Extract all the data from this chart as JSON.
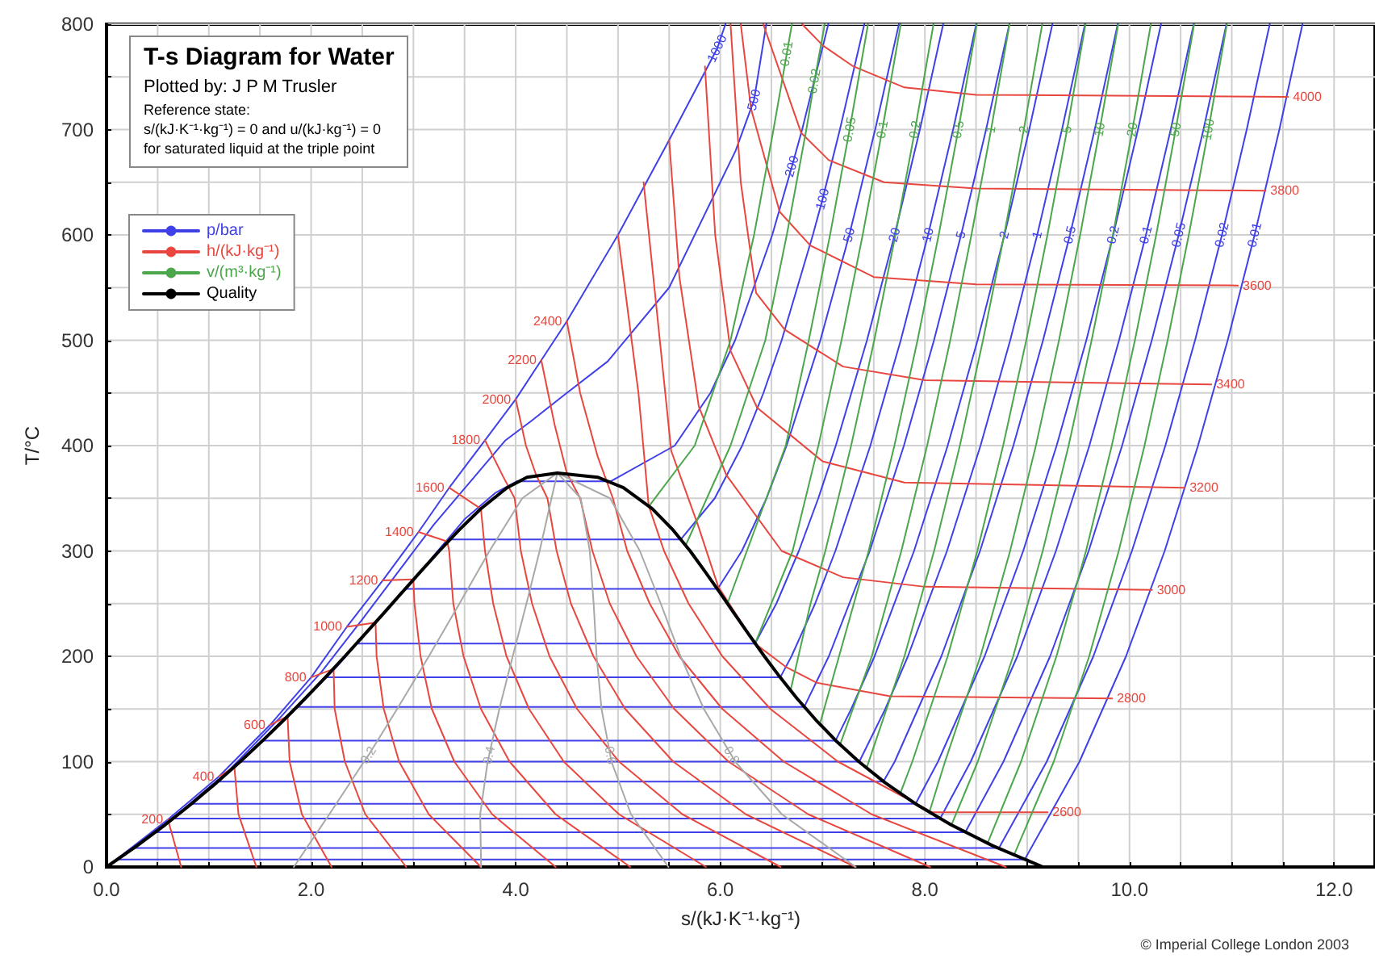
{
  "chart_data": {
    "type": "line",
    "title": "T-s Diagram for Water",
    "subtitle": "Plotted by: J P M Trusler",
    "xlabel": "s/(kJ·K⁻¹·kg⁻¹)",
    "ylabel": "T/°C",
    "annotations": [
      "Reference state:\ns/(kJ·K⁻¹·kg⁻¹) = 0 and u/(kJ·kg⁻¹) = 0\nfor saturated liquid at the triple point",
      "© Imperial College London 2003",
      {
        "text": "1000",
        "x": 5.97,
        "y": 777
      },
      {
        "text": "500",
        "x": 6.33,
        "y": 728
      },
      {
        "text": "200",
        "x": 6.7,
        "y": 665
      },
      {
        "text": "100",
        "x": 7.0,
        "y": 634
      },
      {
        "text": "50",
        "x": 7.261,
        "y": 600
      },
      {
        "text": "20",
        "x": 7.704,
        "y": 600
      },
      {
        "text": "10",
        "x": 8.031,
        "y": 600
      },
      {
        "text": "5",
        "x": 8.354,
        "y": 600
      },
      {
        "text": "2",
        "x": 8.778,
        "y": 600
      },
      {
        "text": "1",
        "x": 9.098,
        "y": 600
      },
      {
        "text": "0.5",
        "x": 9.418,
        "y": 600
      },
      {
        "text": "0.2",
        "x": 9.841,
        "y": 600
      },
      {
        "text": "0.1",
        "x": 10.161,
        "y": 600
      },
      {
        "text": "0.05",
        "x": 10.481,
        "y": 600
      },
      {
        "text": "0.02",
        "x": 10.904,
        "y": 600
      },
      {
        "text": "0.01",
        "x": 11.223,
        "y": 600
      },
      {
        "text": "200",
        "x": 0.6,
        "y": 45
      },
      {
        "text": "400",
        "x": 1.1,
        "y": 86
      },
      {
        "text": "600",
        "x": 1.6,
        "y": 135
      },
      {
        "text": "800",
        "x": 2.0,
        "y": 180
      },
      {
        "text": "1000",
        "x": 2.35,
        "y": 228
      },
      {
        "text": "1200",
        "x": 2.7,
        "y": 272
      },
      {
        "text": "1400",
        "x": 3.05,
        "y": 318
      },
      {
        "text": "1600",
        "x": 3.35,
        "y": 360
      },
      {
        "text": "1800",
        "x": 3.7,
        "y": 405
      },
      {
        "text": "2000",
        "x": 4.0,
        "y": 444
      },
      {
        "text": "2200",
        "x": 4.25,
        "y": 481
      },
      {
        "text": "2400",
        "x": 4.5,
        "y": 518
      },
      {
        "text": "2600",
        "x": 9.2,
        "y": 52
      },
      {
        "text": "2800",
        "x": 9.83,
        "y": 160
      },
      {
        "text": "3000",
        "x": 10.22,
        "y": 263
      },
      {
        "text": "3200",
        "x": 10.54,
        "y": 360
      },
      {
        "text": "3400",
        "x": 10.8,
        "y": 458
      },
      {
        "text": "3600",
        "x": 11.06,
        "y": 552
      },
      {
        "text": "3800",
        "x": 11.33,
        "y": 642
      },
      {
        "text": "4000",
        "x": 11.55,
        "y": 731
      },
      {
        "text": "0.01",
        "x": 6.65,
        "y": 772
      },
      {
        "text": "0.02",
        "x": 6.92,
        "y": 746
      },
      {
        "text": "0.05",
        "x": 7.264,
        "y": 700
      },
      {
        "text": "0.1",
        "x": 7.584,
        "y": 700
      },
      {
        "text": "0.2",
        "x": 7.904,
        "y": 700
      },
      {
        "text": "0.5",
        "x": 8.327,
        "y": 700
      },
      {
        "text": "1",
        "x": 8.647,
        "y": 700
      },
      {
        "text": "2",
        "x": 8.967,
        "y": 700
      },
      {
        "text": "5",
        "x": 9.39,
        "y": 700
      },
      {
        "text": "10",
        "x": 9.709,
        "y": 700
      },
      {
        "text": "20",
        "x": 10.029,
        "y": 700
      },
      {
        "text": "50",
        "x": 10.452,
        "y": 700
      },
      {
        "text": "100",
        "x": 10.772,
        "y": 700
      },
      {
        "text": "0.2",
        "x": 2.56,
        "y": 106
      },
      {
        "text": "0.4",
        "x": 3.74,
        "y": 106
      },
      {
        "text": "0.6",
        "x": 4.925,
        "y": 106
      },
      {
        "text": "0.8",
        "x": 6.11,
        "y": 106
      }
    ],
    "xlim": [
      0,
      12.4
    ],
    "ylim": [
      0,
      800
    ],
    "xticks": [
      {
        "value": 0,
        "label": "0.0"
      },
      {
        "value": 0.5,
        "label": null
      },
      {
        "value": 1,
        "label": null
      },
      {
        "value": 1.5,
        "label": null
      },
      {
        "value": 2,
        "label": "2.0"
      },
      {
        "value": 2.5,
        "label": null
      },
      {
        "value": 3,
        "label": null
      },
      {
        "value": 3.5,
        "label": null
      },
      {
        "value": 4,
        "label": "4.0"
      },
      {
        "value": 4.5,
        "label": null
      },
      {
        "value": 5,
        "label": null
      },
      {
        "value": 5.5,
        "label": null
      },
      {
        "value": 6,
        "label": "6.0"
      },
      {
        "value": 6.5,
        "label": null
      },
      {
        "value": 7,
        "label": null
      },
      {
        "value": 7.5,
        "label": null
      },
      {
        "value": 8,
        "label": "8.0"
      },
      {
        "value": 8.5,
        "label": null
      },
      {
        "value": 9,
        "label": null
      },
      {
        "value": 9.5,
        "label": null
      },
      {
        "value": 10,
        "label": "10.0"
      },
      {
        "value": 10.5,
        "label": null
      },
      {
        "value": 11,
        "label": null
      },
      {
        "value": 11.5,
        "label": null
      },
      {
        "value": 12,
        "label": "12.0"
      }
    ],
    "yticks": [
      0,
      {
        "value": 50,
        "label": null
      },
      100,
      {
        "value": 150,
        "label": null
      },
      200,
      {
        "value": 250,
        "label": null
      },
      300,
      {
        "value": 350,
        "label": null
      },
      400,
      {
        "value": 450,
        "label": null
      },
      500,
      {
        "value": 550,
        "label": null
      },
      600,
      {
        "value": 650,
        "label": null
      },
      700,
      {
        "value": 750,
        "label": null
      },
      800
    ],
    "grid": true,
    "legend": "top left",
    "marker": "none",
    "series": [
      {
        "name": "p/bar",
        "color": "#4040e8",
        "x": [
          0,
          0.6,
          1.1,
          1.6,
          2.0,
          2.35,
          2.7,
          3.05,
          3.35,
          3.7,
          4.0,
          4.25,
          4.5,
          5.0,
          5.5,
          5.97,
          6.05
        ],
        "values": [
          0,
          45,
          86,
          135,
          180,
          228,
          272,
          318,
          360,
          405,
          444,
          481,
          518,
          600,
          690,
          777,
          800
        ]
      },
      {
        "color": "#4040e8",
        "x": [
          0,
          0.63,
          1.18,
          1.68,
          2.1,
          2.5,
          2.85,
          3.2,
          3.55,
          3.9,
          4.16,
          4.5,
          4.9,
          5.5,
          5.85,
          6.15,
          6.33,
          6.45
        ],
        "values": [
          0,
          45,
          90,
          140,
          185,
          235,
          280,
          325,
          365,
          405,
          424,
          450,
          480,
          550,
          620,
          680,
          728,
          800
        ]
      },
      {
        "color": "#4040e8",
        "x": [
          0,
          0.64,
          1.28,
          1.8,
          2.25,
          2.7,
          3.15,
          3.5,
          3.8,
          4.01,
          4.927,
          5.555,
          5.904,
          6.145,
          6.508,
          6.7,
          6.8,
          7.056
        ],
        "values": [
          0,
          45,
          98,
          145,
          190,
          240,
          290,
          330,
          355,
          366,
          366,
          400,
          450,
          500,
          600,
          665,
          700,
          800
        ]
      },
      {
        "color": "#4040e8",
        "x": [
          0,
          0.7,
          1.307,
          1.842,
          2.331,
          2.794,
          3.253,
          3.36,
          5.614,
          5.946,
          6.214,
          6.422,
          6.6,
          6.905,
          7.0,
          7.169,
          7.408
        ],
        "values": [
          0,
          50,
          100,
          150,
          200,
          250,
          300,
          311,
          311,
          350,
          400,
          450,
          500,
          600,
          634,
          700,
          800
        ]
      },
      {
        "color": "#4040e8",
        "x": [
          0,
          0.704,
          1.307,
          1.842,
          2.331,
          2.794,
          2.921,
          5.974,
          6.211,
          6.452,
          6.648,
          6.978,
          7.261,
          7.514,
          7.746
        ],
        "values": [
          0,
          50,
          100,
          150,
          200,
          250,
          264,
          264,
          300,
          350,
          400,
          500,
          600,
          700,
          800
        ]
      },
      {
        "color": "#4040e8",
        "x": [
          0,
          0.704,
          1.307,
          1.842,
          2.331,
          2.447,
          6.339,
          6.548,
          6.768,
          6.958,
          7.129,
          7.434,
          7.704,
          7.951,
          8.179
        ],
        "values": [
          0,
          50,
          100,
          150,
          200,
          212,
          212,
          250,
          300,
          350,
          400,
          500,
          600,
          700,
          800
        ]
      },
      {
        "color": "#4040e8",
        "x": [
          0,
          0.704,
          1.307,
          1.842,
          2.138,
          6.586,
          6.696,
          6.927,
          7.125,
          7.467,
          7.764,
          8.031,
          8.276,
          8.502
        ],
        "values": [
          0,
          50,
          100,
          150,
          180,
          180,
          200,
          250,
          300,
          400,
          500,
          600,
          700,
          800
        ]
      },
      {
        "color": "#4040e8",
        "x": [
          0,
          0.704,
          1.307,
          1.861,
          6.821,
          7.061,
          7.461,
          7.795,
          8.089,
          8.354,
          8.598,
          8.826
        ],
        "values": [
          0,
          50,
          100,
          152,
          152,
          200,
          300,
          400,
          500,
          600,
          700,
          800
        ]
      },
      {
        "color": "#4040e8",
        "x": [
          0,
          0.704,
          1.307,
          1.53,
          7.127,
          7.28,
          7.508,
          7.894,
          8.223,
          8.515,
          8.778,
          9.02,
          9.246
        ],
        "values": [
          0,
          50,
          100,
          120,
          120,
          150,
          200,
          300,
          400,
          500,
          600,
          700,
          800
        ]
      },
      {
        "color": "#4040e8",
        "x": [
          0,
          0.704,
          1.303,
          7.359,
          7.613,
          7.834,
          8.216,
          8.544,
          8.834,
          9.098,
          9.34,
          9.565
        ],
        "values": [
          0,
          50,
          100,
          100,
          150,
          200,
          300,
          400,
          500,
          600,
          700,
          800
        ]
      },
      {
        "color": "#4040e8",
        "x": [
          0,
          0.704,
          1.091,
          7.594,
          7.705,
          8.161,
          8.539,
          8.865,
          9.155,
          9.418,
          9.66,
          9.885
        ],
        "values": [
          0,
          50,
          81,
          81,
          100,
          200,
          300,
          400,
          500,
          600,
          700,
          800
        ]
      },
      {
        "color": "#4040e8",
        "x": [
          0,
          0.832,
          7.909,
          8.128,
          8.584,
          8.961,
          9.288,
          9.578,
          9.841,
          10.083,
          10.308
        ],
        "values": [
          0,
          60,
          60,
          100,
          200,
          300,
          400,
          500,
          600,
          700,
          800
        ]
      },
      {
        "color": "#4040e8",
        "x": [
          0,
          0.649,
          8.149,
          8.448,
          8.904,
          9.281,
          9.608,
          9.898,
          10.161,
          10.403,
          10.628
        ],
        "values": [
          0,
          46,
          46,
          100,
          200,
          300,
          400,
          500,
          600,
          700,
          800
        ]
      },
      {
        "color": "#4040e8",
        "x": [
          0,
          0.476,
          8.395,
          8.768,
          9.224,
          9.601,
          9.928,
          10.218,
          10.481,
          10.723,
          10.948
        ],
        "values": [
          0,
          33,
          33,
          100,
          200,
          300,
          400,
          500,
          600,
          700,
          800
        ]
      },
      {
        "color": "#4040e8",
        "x": [
          0,
          0.261,
          8.724,
          9.191,
          9.647,
          10.024,
          10.351,
          10.641,
          10.904,
          11.146,
          11.371
        ],
        "values": [
          0,
          18,
          18,
          100,
          200,
          300,
          400,
          500,
          600,
          700,
          800
        ]
      },
      {
        "color": "#4040e8",
        "x": [
          0,
          0.106,
          8.975,
          9.511,
          9.966,
          10.344,
          10.67,
          10.96,
          11.223,
          11.465,
          11.691
        ],
        "values": [
          0,
          7,
          7,
          100,
          200,
          300,
          400,
          500,
          600,
          700,
          800
        ]
      },
      {
        "name": "h/(kJ·kg⁻¹)",
        "color": "#e8473f",
        "x": [
          0.6,
          0.73
        ],
        "values": [
          45,
          0
        ]
      },
      {
        "color": "#e8473f",
        "x": [
          1.1,
          1.25,
          1.29,
          1.465
        ],
        "values": [
          86,
          95,
          50,
          0
        ]
      },
      {
        "color": "#e8473f",
        "x": [
          1.6,
          1.77,
          1.79,
          1.91,
          2.2
        ],
        "values": [
          135,
          143,
          100,
          50,
          0
        ]
      },
      {
        "color": "#e8473f",
        "x": [
          2.0,
          2.22,
          2.23,
          2.33,
          2.53,
          2.93
        ],
        "values": [
          180,
          188,
          150,
          100,
          50,
          0
        ]
      },
      {
        "color": "#e8473f",
        "x": [
          2.35,
          2.63,
          2.64,
          2.71,
          2.86,
          3.15,
          3.66
        ],
        "values": [
          228,
          232,
          200,
          150,
          100,
          50,
          0
        ]
      },
      {
        "color": "#e8473f",
        "x": [
          2.7,
          3.0,
          3.01,
          3.07,
          3.18,
          3.4,
          3.77,
          4.39
        ],
        "values": [
          272,
          273,
          250,
          200,
          150,
          100,
          50,
          0
        ]
      },
      {
        "color": "#e8473f",
        "x": [
          3.05,
          3.33,
          3.35,
          3.39,
          3.49,
          3.66,
          3.94,
          4.39,
          5.12
        ],
        "values": [
          318,
          309,
          300,
          250,
          200,
          150,
          100,
          50,
          0
        ]
      },
      {
        "color": "#e8473f",
        "x": [
          3.35,
          3.66,
          3.7,
          3.78,
          3.91,
          4.13,
          4.47,
          5.01,
          5.86
        ],
        "values": [
          360,
          340,
          300,
          250,
          200,
          150,
          100,
          50,
          0
        ]
      },
      {
        "color": "#e8473f",
        "x": [
          3.7,
          3.88,
          3.99,
          4.05,
          4.16,
          4.33,
          4.6,
          5.01,
          5.63,
          6.59
        ],
        "values": [
          405,
          370,
          350,
          300,
          250,
          200,
          150,
          100,
          50,
          0
        ]
      },
      {
        "color": "#e8473f",
        "x": [
          4.0,
          4.1,
          4.2,
          4.31,
          4.4,
          4.54,
          4.76,
          5.07,
          5.54,
          6.25,
          7.32
        ],
        "values": [
          444,
          400,
          372,
          350,
          300,
          250,
          200,
          150,
          100,
          50,
          0
        ]
      },
      {
        "color": "#e8473f",
        "x": [
          4.25,
          4.38,
          4.5,
          4.63,
          4.75,
          4.92,
          5.18,
          5.55,
          6.08,
          6.86,
          8.05
        ],
        "values": [
          481,
          420,
          374,
          350,
          300,
          250,
          200,
          150,
          100,
          50,
          0
        ]
      },
      {
        "color": "#e8473f",
        "x": [
          4.5,
          4.63,
          4.8,
          4.95,
          5.09,
          5.31,
          5.6,
          6.02,
          6.62,
          7.48,
          8.79
        ],
        "values": [
          518,
          450,
          390,
          350,
          300,
          250,
          200,
          150,
          100,
          50,
          0
        ]
      },
      {
        "color": "#e8473f",
        "x": [
          5.0,
          5.2,
          5.3,
          5.45,
          5.69,
          6.02,
          6.49,
          7.15,
          8.07,
          9.2
        ],
        "values": [
          600,
          450,
          343,
          300,
          250,
          200,
          150,
          100,
          52,
          52
        ]
      },
      {
        "color": "#e8473f",
        "x": [
          5.25,
          5.52,
          5.78,
          5.98,
          6.34,
          6.64,
          6.94,
          7.66,
          9.83
        ],
        "values": [
          650,
          395,
          325,
          266,
          212,
          190,
          175,
          162,
          160
        ]
      },
      {
        "color": "#e8473f",
        "x": [
          5.5,
          5.6,
          5.79,
          6.06,
          6.6,
          7.2,
          8.0,
          10.22
        ],
        "values": [
          690,
          560,
          437,
          372,
          300,
          275,
          266,
          263
        ]
      },
      {
        "color": "#e8473f",
        "x": [
          5.85,
          5.95,
          6.1,
          6.36,
          7.0,
          7.8,
          10.54
        ],
        "values": [
          760,
          600,
          490,
          436,
          385,
          365,
          360
        ]
      },
      {
        "color": "#e8473f",
        "x": [
          6.1,
          6.2,
          6.35,
          6.63,
          7.2,
          8.0,
          10.8
        ],
        "values": [
          800,
          650,
          545,
          510,
          475,
          462,
          458
        ]
      },
      {
        "color": "#e8473f",
        "x": [
          6.2,
          6.3,
          6.58,
          6.88,
          7.5,
          8.5,
          11.06
        ],
        "values": [
          800,
          720,
          622,
          590,
          560,
          553,
          552
        ]
      },
      {
        "color": "#e8473f",
        "x": [
          6.42,
          6.79,
          7.06,
          7.6,
          8.5,
          11.33
        ],
        "values": [
          800,
          697,
          671,
          650,
          644,
          642
        ]
      },
      {
        "color": "#e8473f",
        "x": [
          6.8,
          7.0,
          7.3,
          7.8,
          8.5,
          11.55
        ],
        "values": [
          800,
          780,
          760,
          740,
          733,
          731
        ]
      },
      {
        "name": "v/(m³·kg⁻¹)",
        "color": "#4ca64c",
        "x": [
          5.3,
          5.75,
          6.1,
          6.33,
          6.52,
          6.65,
          6.7
        ],
        "values": [
          342,
          400,
          500,
          600,
          700,
          772,
          800
        ]
      },
      {
        "color": "#4ca64c",
        "x": [
          5.66,
          6.1,
          6.44,
          6.65,
          6.841,
          6.92,
          7.021
        ],
        "values": [
          305,
          400,
          500,
          600,
          700,
          746,
          800
        ]
      },
      {
        "color": "#4ca64c",
        "x": [
          6.07,
          6.64,
          6.865,
          7.073,
          7.264,
          7.444
        ],
        "values": [
          250,
          400,
          500,
          600,
          700,
          800
        ]
      },
      {
        "color": "#4ca64c",
        "x": [
          6.34,
          6.707,
          6.959,
          7.185,
          7.392,
          7.584,
          7.764
        ],
        "values": [
          212,
          300,
          400,
          500,
          600,
          700,
          800
        ]
      },
      {
        "color": "#4ca64c",
        "x": [
          6.69,
          6.882,
          7.027,
          7.279,
          7.505,
          7.712,
          7.904,
          8.084
        ],
        "values": [
          169,
          250,
          300,
          400,
          500,
          600,
          700,
          800
        ]
      },
      {
        "color": "#4ca64c",
        "x": [
          6.98,
          7.161,
          7.45,
          7.702,
          7.928,
          8.135,
          8.327,
          8.507
        ],
        "values": [
          138,
          200,
          300,
          400,
          500,
          600,
          700,
          800
        ]
      },
      {
        "color": "#4ca64c",
        "x": [
          7.17,
          7.481,
          7.77,
          8.022,
          8.248,
          8.455,
          8.647,
          8.827
        ],
        "values": [
          116,
          200,
          300,
          400,
          500,
          600,
          700,
          800
        ]
      },
      {
        "color": "#4ca64c",
        "x": [
          7.43,
          7.8,
          8.09,
          8.342,
          8.568,
          8.775,
          8.967,
          9.147
        ],
        "values": [
          94,
          200,
          300,
          400,
          500,
          600,
          700,
          800
        ]
      },
      {
        "color": "#4ca64c",
        "x": [
          7.76,
          7.877,
          8.223,
          8.513,
          8.765,
          8.991,
          9.198,
          9.39,
          9.57
        ],
        "values": [
          70,
          100,
          200,
          300,
          400,
          500,
          600,
          700,
          800
        ]
      },
      {
        "color": "#4ca64c",
        "x": [
          8.05,
          8.197,
          8.543,
          8.833,
          9.085,
          9.311,
          9.518,
          9.709,
          9.89
        ],
        "values": [
          54,
          100,
          200,
          300,
          400,
          500,
          600,
          700,
          800
        ]
      },
      {
        "color": "#4ca64c",
        "x": [
          8.26,
          8.517,
          8.863,
          9.152,
          9.405,
          9.63,
          9.838,
          10.029,
          10.209
        ],
        "values": [
          40,
          100,
          200,
          300,
          400,
          500,
          600,
          700,
          800
        ]
      },
      {
        "color": "#4ca64c",
        "x": [
          8.61,
          8.94,
          9.286,
          9.575,
          9.827,
          10.053,
          10.261,
          10.452,
          10.632
        ],
        "values": [
          22,
          100,
          200,
          300,
          400,
          500,
          600,
          700,
          800
        ]
      },
      {
        "color": "#4ca64c",
        "x": [
          8.87,
          9.26,
          9.606,
          9.895,
          10.147,
          10.373,
          10.58,
          10.772,
          10.952
        ],
        "values": [
          11,
          100,
          200,
          300,
          400,
          500,
          600,
          700,
          800
        ]
      },
      {
        "color": "#a8a8a8",
        "x": [
          1.831,
          2.178,
          2.517,
          2.56,
          2.841,
          3.151,
          3.45,
          3.744,
          4.064,
          4.407
        ],
        "values": [
          0,
          50,
          100,
          106,
          150,
          200,
          250,
          300,
          350,
          374
        ]
      },
      {
        "color": "#a8a8a8",
        "x": [
          3.662,
          3.653,
          3.726,
          3.74,
          3.84,
          3.971,
          4.105,
          4.234,
          4.35,
          4.407
        ],
        "values": [
          0,
          50,
          100,
          106,
          150,
          200,
          250,
          300,
          350,
          374
        ]
      },
      {
        "color": "#a8a8a8",
        "x": [
          5.493,
          5.127,
          4.936,
          4.925,
          4.839,
          4.791,
          4.762,
          4.724,
          4.636,
          4.407
        ],
        "values": [
          0,
          50,
          100,
          106,
          150,
          200,
          250,
          300,
          350,
          374
        ]
      },
      {
        "color": "#a8a8a8",
        "x": [
          7.324,
          6.602,
          6.145,
          6.11,
          5.839,
          5.612,
          5.418,
          5.214,
          4.922,
          4.407
        ],
        "values": [
          0,
          50,
          100,
          106,
          150,
          200,
          250,
          300,
          350,
          374
        ]
      },
      {
        "name": "Quality",
        "color": "#000000",
        "x": [
          0,
          0.2966,
          0.5725,
          0.8312,
          1.0753,
          1.3069,
          1.5276,
          1.7391,
          1.9427,
          2.1396,
          2.3305,
          2.5165,
          2.7015,
          2.8838,
          3.0668,
          3.2534,
          3.448,
          3.6594,
          3.9147,
          4.1106,
          4.407,
          4.8,
          5.053,
          5.336,
          5.537,
          5.705,
          5.854,
          5.999,
          6.141,
          6.284,
          6.431,
          6.585,
          6.75,
          6.93,
          7.129,
          7.354,
          7.611,
          7.908,
          8.256,
          8.666,
          9.155
        ],
        "values": [
          0,
          20,
          40,
          60,
          80,
          100,
          120,
          140,
          160,
          180,
          200,
          220,
          240,
          260,
          280,
          300,
          320,
          340,
          360,
          370,
          374,
          370,
          360,
          340,
          320,
          300,
          280,
          260,
          240,
          220,
          200,
          180,
          160,
          140,
          120,
          100,
          80,
          60,
          40,
          20,
          0
        ]
      }
    ]
  }
}
